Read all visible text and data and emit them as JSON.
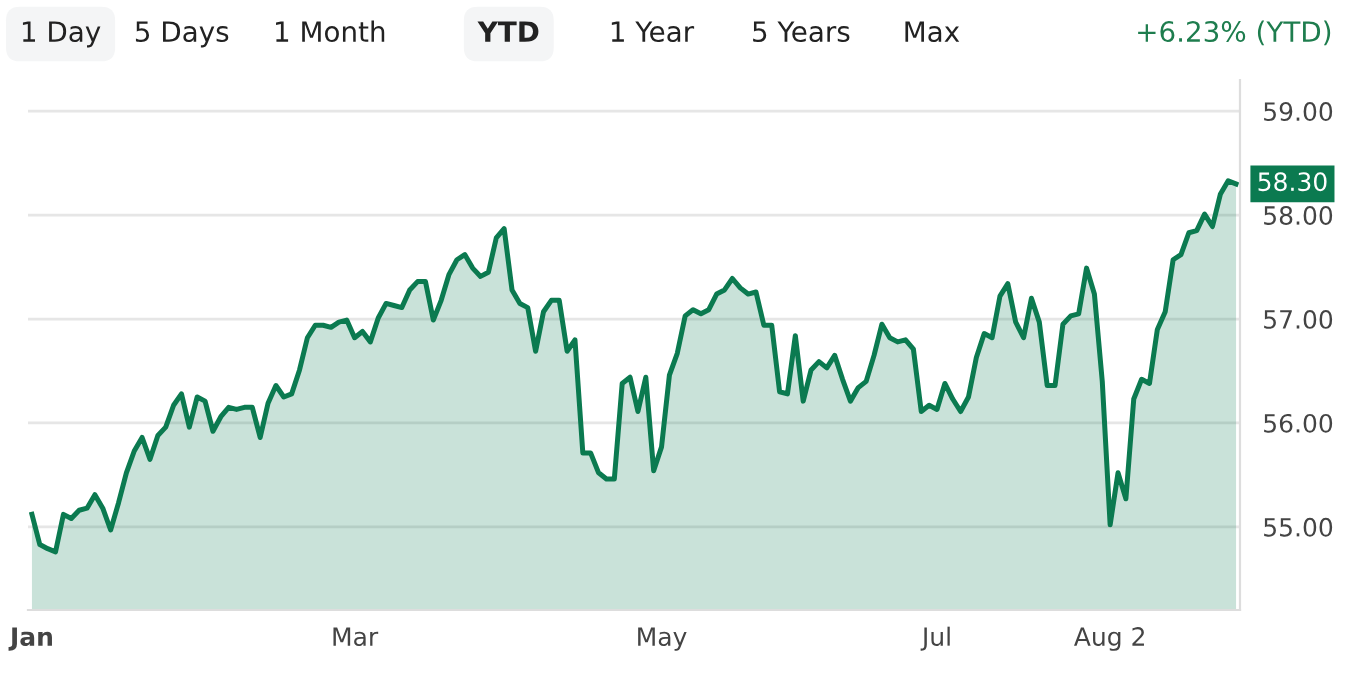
{
  "chart_data": {
    "type": "area",
    "annotations": [
      "1 Day",
      "5 Days",
      "1 Month",
      "YTD",
      "1 Year",
      "5 Years",
      "Max",
      "+6.23% (YTD)"
    ],
    "categories": [
      "Jan",
      null,
      null,
      null,
      null,
      null,
      null,
      null,
      null,
      null,
      null,
      null,
      null,
      null,
      null,
      null,
      null,
      null,
      null,
      null,
      null,
      null,
      null,
      null,
      null,
      null,
      null,
      null,
      null,
      null,
      null,
      null,
      null,
      null,
      null,
      null,
      null,
      null,
      null,
      null,
      null,
      "Mar",
      null,
      null,
      null,
      null,
      null,
      null,
      null,
      null,
      null,
      null,
      null,
      null,
      null,
      null,
      null,
      null,
      null,
      null,
      null,
      null,
      null,
      null,
      null,
      null,
      null,
      null,
      null,
      null,
      null,
      null,
      null,
      null,
      null,
      null,
      null,
      null,
      null,
      null,
      "May",
      null,
      null,
      null,
      null,
      null,
      null,
      null,
      null,
      null,
      null,
      null,
      null,
      null,
      null,
      null,
      null,
      null,
      null,
      null,
      null,
      null,
      null,
      null,
      null,
      null,
      null,
      null,
      null,
      null,
      null,
      null,
      null,
      null,
      null,
      "Jul",
      null,
      null,
      null,
      null,
      null,
      null,
      null,
      null,
      null,
      null,
      null,
      null,
      null,
      null,
      null,
      null,
      null,
      null,
      null,
      null,
      null,
      "Aug 2",
      null,
      null,
      null,
      null,
      null,
      null,
      null,
      null,
      null,
      null,
      null,
      null,
      null,
      null,
      null,
      null
    ],
    "series": [
      {
        "color": "#0b7a50",
        "values": [
          55.12,
          54.83,
          54.79,
          54.76,
          55.12,
          55.08,
          55.16,
          55.18,
          55.31,
          55.18,
          54.97,
          55.23,
          55.52,
          55.73,
          55.86,
          55.65,
          55.88,
          55.96,
          56.17,
          56.28,
          55.96,
          56.25,
          56.21,
          55.92,
          56.06,
          56.15,
          56.13,
          56.15,
          56.15,
          55.86,
          56.19,
          56.36,
          56.25,
          56.28,
          56.51,
          56.82,
          56.94,
          56.94,
          56.92,
          56.97,
          56.99,
          56.82,
          56.88,
          56.78,
          57.01,
          57.15,
          57.13,
          57.11,
          57.28,
          57.36,
          57.36,
          56.99,
          57.18,
          57.43,
          57.57,
          57.62,
          57.49,
          57.41,
          57.45,
          57.78,
          57.87,
          57.28,
          57.15,
          57.11,
          56.69,
          57.07,
          57.18,
          57.18,
          56.69,
          56.8,
          55.71,
          55.71,
          55.52,
          55.46,
          55.46,
          56.38,
          56.44,
          56.11,
          56.44,
          55.54,
          55.77,
          56.46,
          56.67,
          57.03,
          57.09,
          57.05,
          57.09,
          57.24,
          57.28,
          57.39,
          57.3,
          57.24,
          57.26,
          56.94,
          56.94,
          56.3,
          56.28,
          56.84,
          56.21,
          56.51,
          56.59,
          56.53,
          56.65,
          56.42,
          56.21,
          56.34,
          56.4,
          56.65,
          56.95,
          56.82,
          56.78,
          56.8,
          56.71,
          56.11,
          56.17,
          56.13,
          56.38,
          56.23,
          56.11,
          56.25,
          56.63,
          56.86,
          56.82,
          57.22,
          57.34,
          56.97,
          56.82,
          57.2,
          56.97,
          56.36,
          56.36,
          56.95,
          57.03,
          57.05,
          57.49,
          57.24,
          56.4,
          55.02,
          55.52,
          55.27,
          56.23,
          56.42,
          56.38,
          56.9,
          57.07,
          57.57,
          57.62,
          57.83,
          57.85,
          58.01,
          57.89,
          58.2,
          58.33,
          58.3
        ],
        "value_labels": [
          null,
          null,
          null,
          null,
          null,
          null,
          null,
          null,
          null,
          null,
          null,
          null,
          null,
          null,
          null,
          null,
          null,
          null,
          null,
          null,
          null,
          null,
          null,
          null,
          null,
          null,
          null,
          null,
          null,
          null,
          null,
          null,
          null,
          null,
          null,
          null,
          null,
          null,
          null,
          null,
          null,
          null,
          null,
          null,
          null,
          null,
          null,
          null,
          null,
          null,
          null,
          null,
          null,
          null,
          null,
          null,
          null,
          null,
          null,
          null,
          null,
          null,
          null,
          null,
          null,
          null,
          null,
          null,
          null,
          null,
          null,
          null,
          null,
          null,
          null,
          null,
          null,
          null,
          null,
          null,
          null,
          null,
          null,
          null,
          null,
          null,
          null,
          null,
          null,
          null,
          null,
          null,
          null,
          null,
          null,
          null,
          null,
          null,
          null,
          null,
          null,
          null,
          null,
          null,
          null,
          null,
          null,
          null,
          null,
          null,
          null,
          null,
          null,
          null,
          null,
          null,
          null,
          null,
          null,
          null,
          null,
          null,
          null,
          null,
          null,
          null,
          null,
          null,
          null,
          null,
          null,
          null,
          null,
          null,
          null,
          null,
          null,
          null,
          null,
          null,
          null,
          null,
          null,
          null,
          null,
          null,
          null,
          null,
          null,
          null,
          null,
          null,
          null,
          "58.30"
        ]
      }
    ],
    "ylim": [
      54.2,
      59.3
    ],
    "yticks": [
      {
        "value": 55,
        "label": "55.00"
      },
      {
        "value": 56,
        "label": "56.00"
      },
      {
        "value": 57,
        "label": "57.00"
      },
      {
        "value": 58,
        "label": "58.00"
      },
      {
        "value": 59,
        "label": "59.00"
      }
    ],
    "grid": "y"
  }
}
